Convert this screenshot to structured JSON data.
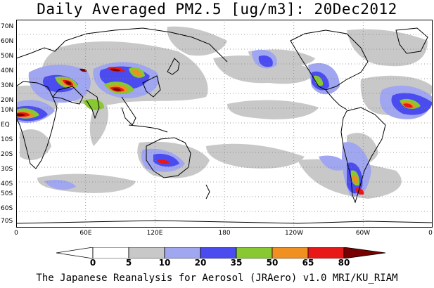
{
  "title": "Daily Averaged PM2.5 [ug/m3]: 20Dec2012",
  "lat_labels": [
    "70N",
    "60N",
    "50N",
    "40N",
    "30N",
    "20N",
    "10N",
    "EQ",
    "10S",
    "20S",
    "30S",
    "40S",
    "50S",
    "60S",
    "70S"
  ],
  "lon_labels": [
    "0",
    "60E",
    "120E",
    "180",
    "120W",
    "60W",
    "0"
  ],
  "colorbar": {
    "levels": [
      "0",
      "5",
      "10",
      "20",
      "35",
      "50",
      "65",
      "80"
    ],
    "colors": [
      "#ffffff",
      "#c8c8c8",
      "#a0a6f0",
      "#4a4cf0",
      "#88c830",
      "#f09020",
      "#e81818",
      "#780000"
    ]
  },
  "footer": "The Japanese Reanalysis for Aerosol (JRAero) v1.0 MRI/KU_RIAM"
}
